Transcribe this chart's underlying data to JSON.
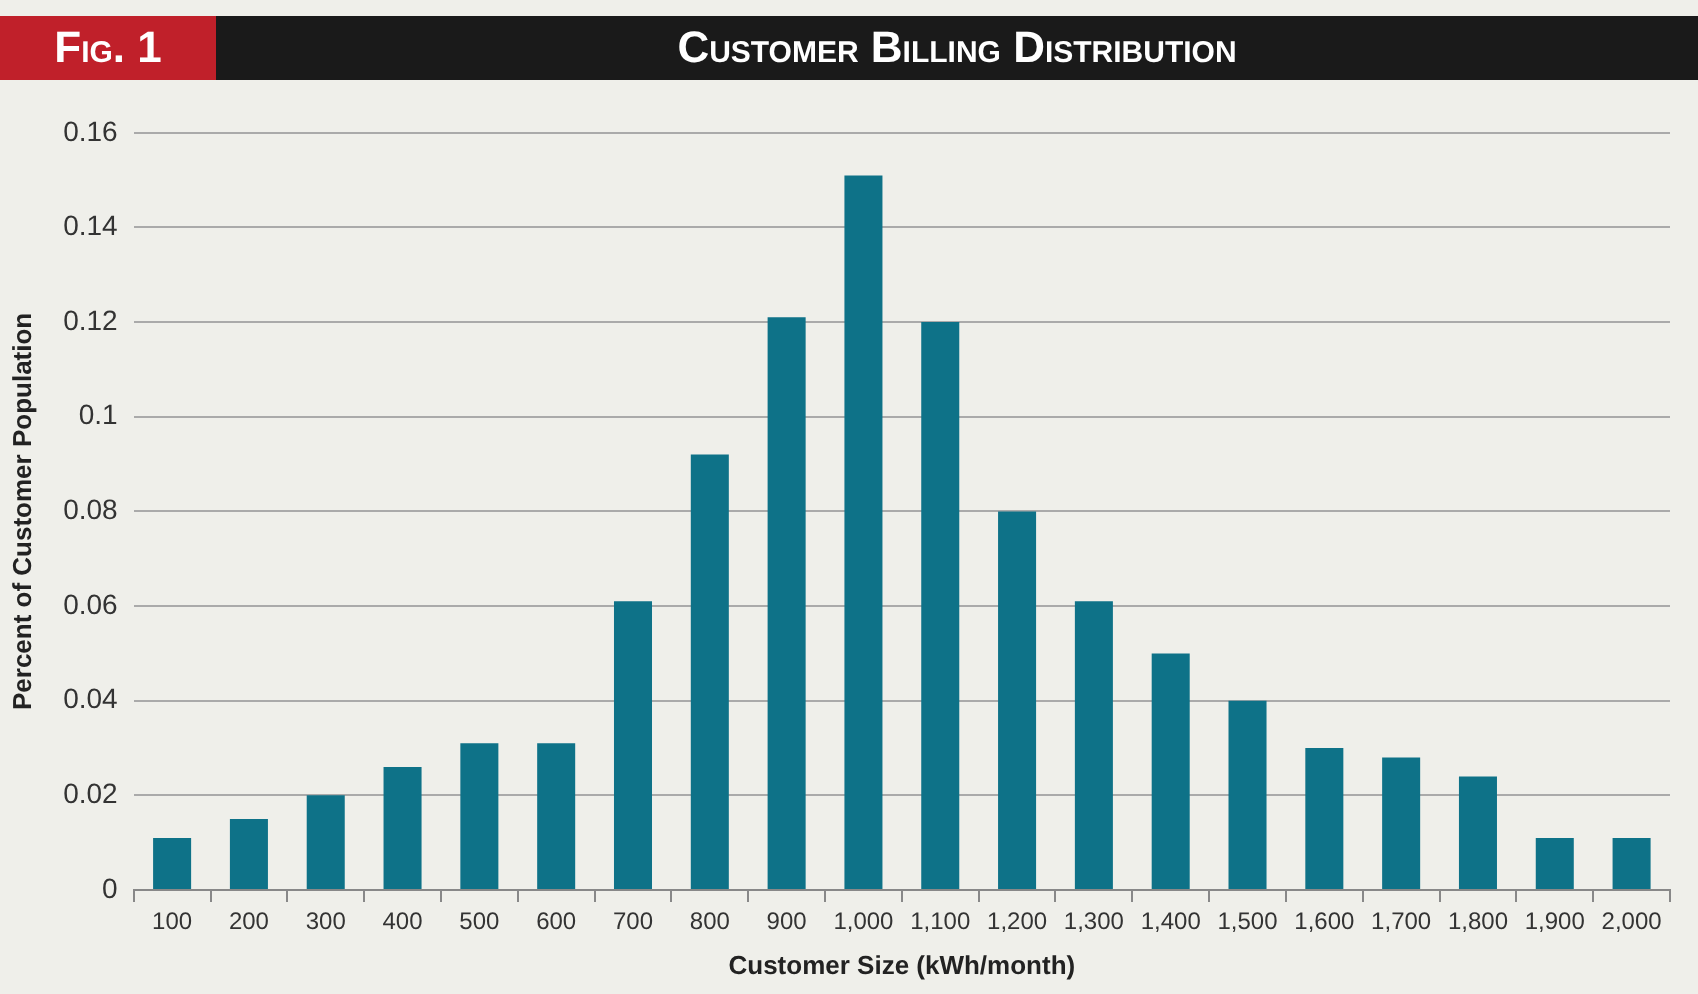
{
  "chart_data": {
    "type": "bar",
    "title": "Customer Billing Distribution",
    "annotations": [
      "Fig. 1"
    ],
    "xlabel": "Customer Size (kWh/month)",
    "ylabel": "Percent of Customer Population",
    "categories": [
      "100",
      "200",
      "300",
      "400",
      "500",
      "600",
      "700",
      "800",
      "900",
      "1,000",
      "1,100",
      "1,200",
      "1,300",
      "1,400",
      "1,500",
      "1,600",
      "1,700",
      "1,800",
      "1,900",
      "2,000"
    ],
    "values": [
      0.011,
      0.015,
      0.02,
      0.026,
      0.031,
      0.031,
      0.061,
      0.092,
      0.121,
      0.151,
      0.12,
      0.08,
      0.061,
      0.05,
      0.04,
      0.03,
      0.028,
      0.024,
      0.011,
      0.011
    ],
    "color": "#0e7288",
    "ylim": [
      0,
      0.16
    ],
    "yticks": [
      0,
      0.02,
      0.04,
      0.06,
      0.08,
      0.1,
      0.12,
      0.14,
      0.16
    ],
    "grid": "y",
    "legend": false
  }
}
